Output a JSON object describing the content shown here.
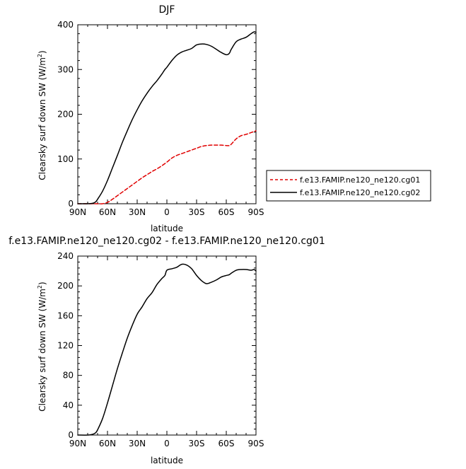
{
  "chart_data": [
    {
      "type": "line",
      "title": "DJF",
      "xlabel": "latitude",
      "ylabel": "Clearsky surf down SW (W/m²)",
      "ylabel_main": "Clearsky surf down SW (W/m",
      "ylabel_sup": "2",
      "ylabel_close": ")",
      "xlim": [
        90,
        -90
      ],
      "ylim": [
        0,
        400
      ],
      "xticks": [
        90,
        60,
        30,
        0,
        -30,
        -60,
        -90
      ],
      "xtick_labels": [
        "90N",
        "60N",
        "30N",
        "0",
        "30S",
        "60S",
        "90S"
      ],
      "yticks": [
        0,
        100,
        200,
        300,
        400
      ],
      "ytick_labels": [
        "0",
        "100",
        "200",
        "300",
        "400"
      ],
      "legend_position": "right",
      "series": [
        {
          "name": "f.e13.FAMIP.ne120_ne120.cg01",
          "color": "#e00000",
          "dash": "dashed",
          "x": [
            90,
            80,
            75,
            70,
            65,
            60,
            55,
            50,
            45,
            40,
            35,
            30,
            25,
            20,
            15,
            10,
            5,
            0,
            -5,
            -10,
            -15,
            -20,
            -25,
            -30,
            -35,
            -40,
            -45,
            -50,
            -55,
            -60,
            -63,
            -65,
            -70,
            -75,
            -80,
            -85,
            -90
          ],
          "y": [
            0,
            0,
            0,
            0,
            0,
            3,
            10,
            18,
            26,
            34,
            42,
            50,
            58,
            65,
            72,
            78,
            85,
            93,
            102,
            108,
            112,
            116,
            120,
            124,
            128,
            130,
            131,
            131,
            131,
            130,
            130,
            133,
            145,
            152,
            155,
            159,
            163
          ]
        },
        {
          "name": "f.e13.FAMIP.ne120_ne120.cg02",
          "color": "#000000",
          "dash": "solid",
          "x": [
            90,
            80,
            75,
            72,
            70,
            65,
            60,
            55,
            50,
            45,
            40,
            35,
            30,
            25,
            20,
            15,
            10,
            5,
            2,
            0,
            -5,
            -10,
            -15,
            -20,
            -25,
            -30,
            -35,
            -40,
            -45,
            -50,
            -55,
            -60,
            -63,
            -65,
            -70,
            -75,
            -80,
            -85,
            -88,
            -90
          ],
          "y": [
            0,
            0,
            1,
            4,
            10,
            28,
            52,
            80,
            108,
            137,
            163,
            188,
            210,
            230,
            247,
            262,
            275,
            290,
            300,
            305,
            320,
            332,
            339,
            343,
            347,
            355,
            357,
            356,
            352,
            345,
            338,
            333,
            336,
            345,
            362,
            368,
            372,
            380,
            384,
            383
          ]
        }
      ]
    },
    {
      "type": "line",
      "title": "f.e13.FAMIP.ne120_ne120.cg02 - f.e13.FAMIP.ne120_ne120.cg01",
      "xlabel": "latitude",
      "ylabel": "Clearsky surf down SW (W/m²)",
      "ylabel_main": "Clearsky surf down SW (W/m",
      "ylabel_sup": "2",
      "ylabel_close": ")",
      "xlim": [
        90,
        -90
      ],
      "ylim": [
        0,
        240
      ],
      "xticks": [
        90,
        60,
        30,
        0,
        -30,
        -60,
        -90
      ],
      "xtick_labels": [
        "90N",
        "60N",
        "30N",
        "0",
        "30S",
        "60S",
        "90S"
      ],
      "yticks": [
        0,
        40,
        80,
        120,
        160,
        200,
        240
      ],
      "ytick_labels": [
        "0",
        "40",
        "80",
        "120",
        "160",
        "200",
        "240"
      ],
      "series": [
        {
          "color": "#000000",
          "dash": "solid",
          "x": [
            90,
            80,
            75,
            72,
            70,
            65,
            60,
            55,
            50,
            45,
            40,
            35,
            30,
            25,
            20,
            15,
            10,
            5,
            2,
            0,
            -5,
            -10,
            -15,
            -20,
            -25,
            -30,
            -35,
            -40,
            -45,
            -50,
            -55,
            -60,
            -63,
            -65,
            -70,
            -75,
            -80,
            -85,
            -88,
            -90
          ],
          "y": [
            0,
            0,
            1,
            3,
            7,
            22,
            43,
            66,
            89,
            110,
            130,
            147,
            162,
            172,
            183,
            191,
            202,
            210,
            214,
            221,
            223,
            225,
            229,
            228,
            223,
            214,
            207,
            203,
            205,
            208,
            212,
            214,
            215,
            217,
            221,
            222,
            222,
            221,
            222,
            220
          ]
        }
      ]
    }
  ]
}
